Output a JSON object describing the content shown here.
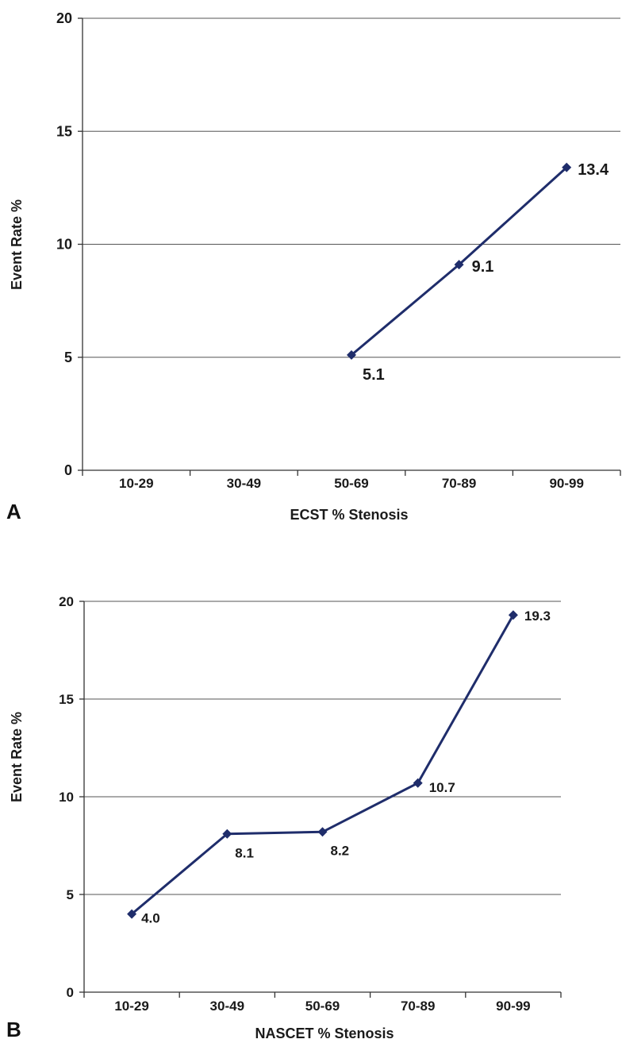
{
  "chart_data": [
    {
      "type": "line",
      "panel_label": "A",
      "categories": [
        "10-29",
        "30-49",
        "50-69",
        "70-89",
        "90-99"
      ],
      "series": [
        {
          "values": [
            null,
            null,
            5.1,
            9.1,
            13.4
          ],
          "labels": [
            null,
            null,
            "5.1",
            "9.1",
            "13.4"
          ]
        }
      ],
      "xlabel": "ECST % Stenosis",
      "ylabel": "Event Rate %",
      "ylim": [
        0,
        20
      ],
      "yticks": [
        "0",
        "5",
        "10",
        "15",
        "20"
      ],
      "grid": true,
      "legend": "none",
      "color": "#1f2d6b"
    },
    {
      "type": "line",
      "panel_label": "B",
      "categories": [
        "10-29",
        "30-49",
        "50-69",
        "70-89",
        "90-99"
      ],
      "series": [
        {
          "values": [
            4.0,
            8.1,
            8.2,
            10.7,
            19.3
          ],
          "labels": [
            "4.0",
            "8.1",
            "8.2",
            "10.7",
            "19.3"
          ]
        }
      ],
      "xlabel": "NASCET % Stenosis",
      "ylabel": "Event Rate %",
      "ylim": [
        0,
        20
      ],
      "yticks": [
        "0",
        "5",
        "10",
        "15",
        "20"
      ],
      "grid": true,
      "legend": "none",
      "color": "#1f2d6b"
    }
  ]
}
